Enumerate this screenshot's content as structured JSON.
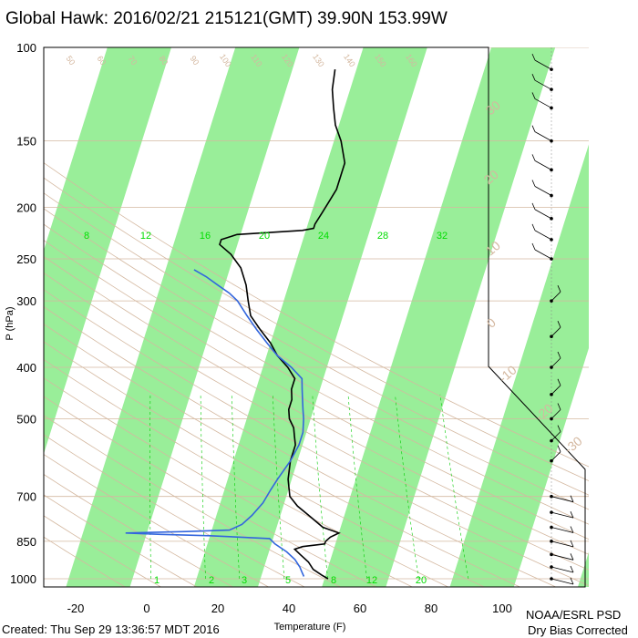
{
  "title": "Global Hawk: 2016/02/21 215121(GMT) 39.90N 153.99W",
  "footer": {
    "created": "Created: Thu Sep 29 13:36:57 MDT 2016",
    "credit_line1": "NOAA/ESRL PSD",
    "credit_line2": "Dry Bias Corrected"
  },
  "colors": {
    "temperature": "#000000",
    "dewpoint": "#3366dd",
    "isotherm_band": "#99ee99",
    "dry_adiabat": "#d4b8a0",
    "mixing_ratio": "#00cc00"
  },
  "chart_data": {
    "type": "line",
    "subtype": "skew-T log-P",
    "xlabel": "Temperature (F)",
    "ylabel": "P (hPa)",
    "xlim": [
      -30,
      125
    ],
    "ylim": [
      1000,
      100
    ],
    "yscale": "log",
    "x_ticks": [
      -20,
      0,
      20,
      40,
      60,
      80,
      100
    ],
    "y_ticks": [
      100,
      150,
      200,
      250,
      300,
      400,
      500,
      700,
      850,
      1000
    ],
    "mixing_ratio_labels_top": [
      "8",
      "12",
      "16",
      "20",
      "24",
      "28",
      "32"
    ],
    "mixing_ratio_labels_bottom": [
      "1",
      "2",
      "3",
      "5",
      "8",
      "12",
      "20"
    ],
    "dry_adiabat_labels": [
      "50",
      "60",
      "70",
      "80",
      "90",
      "100",
      "110",
      "120",
      "130",
      "140",
      "150",
      "160"
    ],
    "isotherm_labels": [
      "30",
      "20",
      "10",
      "0",
      "-10",
      "-20",
      "-30"
    ],
    "series": [
      {
        "name": "Temperature",
        "points": [
          [
            1000,
            51
          ],
          [
            985,
            49
          ],
          [
            960,
            46
          ],
          [
            930,
            44
          ],
          [
            900,
            41
          ],
          [
            880,
            39
          ],
          [
            870,
            41
          ],
          [
            860,
            47
          ],
          [
            850,
            47
          ],
          [
            835,
            48
          ],
          [
            820,
            50
          ],
          [
            800,
            45
          ],
          [
            760,
            40
          ],
          [
            730,
            36
          ],
          [
            700,
            33
          ],
          [
            650,
            31
          ],
          [
            600,
            30
          ],
          [
            580,
            30
          ],
          [
            560,
            30
          ],
          [
            540,
            29
          ],
          [
            520,
            28
          ],
          [
            500,
            26
          ],
          [
            480,
            25
          ],
          [
            460,
            25
          ],
          [
            440,
            24
          ],
          [
            420,
            24
          ],
          [
            400,
            21
          ],
          [
            380,
            17
          ],
          [
            360,
            14
          ],
          [
            340,
            10
          ],
          [
            320,
            6
          ],
          [
            300,
            4
          ],
          [
            280,
            2
          ],
          [
            260,
            -1
          ],
          [
            245,
            -5
          ],
          [
            235,
            -9
          ],
          [
            230,
            -9
          ],
          [
            225,
            -5
          ],
          [
            223,
            4
          ],
          [
            221,
            13
          ],
          [
            219,
            16
          ],
          [
            215,
            16
          ],
          [
            205,
            17
          ],
          [
            195,
            18
          ],
          [
            185,
            19
          ],
          [
            175,
            19
          ],
          [
            165,
            19
          ],
          [
            150,
            16
          ],
          [
            140,
            13
          ],
          [
            130,
            11
          ],
          [
            120,
            9
          ],
          [
            110,
            8
          ]
        ]
      },
      {
        "name": "Dewpoint",
        "points": [
          [
            990,
            44
          ],
          [
            970,
            43
          ],
          [
            950,
            42
          ],
          [
            920,
            40
          ],
          [
            890,
            37
          ],
          [
            860,
            33
          ],
          [
            840,
            31
          ],
          [
            830,
            14
          ],
          [
            825,
            0
          ],
          [
            820,
            -10
          ],
          [
            815,
            7
          ],
          [
            810,
            19
          ],
          [
            790,
            22
          ],
          [
            760,
            24
          ],
          [
            720,
            26
          ],
          [
            680,
            27
          ],
          [
            650,
            28
          ],
          [
            600,
            30
          ],
          [
            560,
            31
          ],
          [
            530,
            31
          ],
          [
            500,
            30
          ],
          [
            480,
            29
          ],
          [
            460,
            28
          ],
          [
            440,
            27
          ],
          [
            420,
            26
          ],
          [
            400,
            22
          ],
          [
            380,
            17
          ],
          [
            360,
            13
          ],
          [
            340,
            9
          ],
          [
            320,
            5
          ],
          [
            300,
            1
          ],
          [
            290,
            -2
          ],
          [
            280,
            -6
          ],
          [
            270,
            -10
          ],
          [
            262,
            -14
          ]
        ]
      }
    ]
  }
}
